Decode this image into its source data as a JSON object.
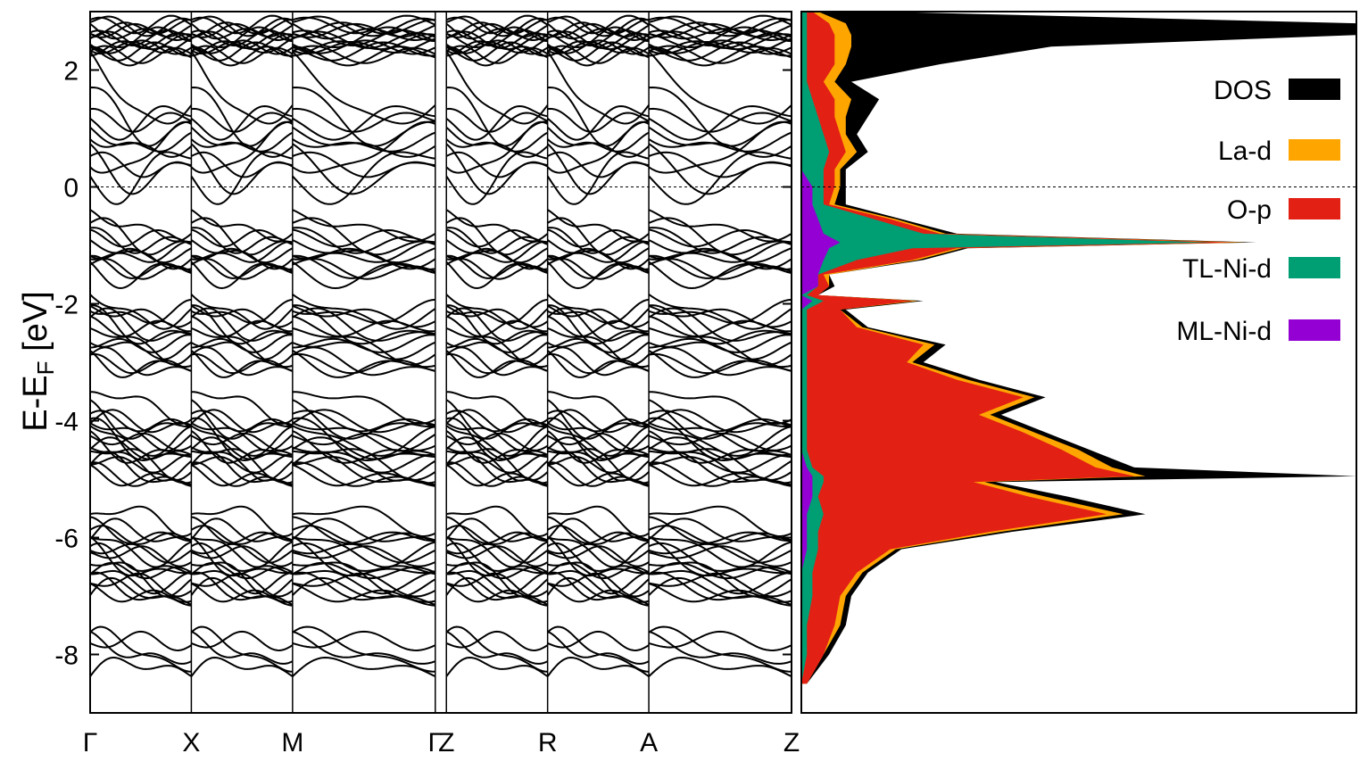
{
  "chart_data": [
    {
      "type": "line",
      "subtype": "band-structure",
      "ylabel": "E-E_F [eV]",
      "ylabel_parts": {
        "main": "E-E",
        "subscript": "F",
        "unit": " [eV]"
      },
      "ylim": [
        -9,
        3
      ],
      "yticks": [
        2,
        0,
        -2,
        -4,
        -6,
        -8
      ],
      "ytick_labels": [
        "2",
        "0",
        "-2",
        "-4",
        "-6",
        "-8"
      ],
      "kpath": [
        {
          "label": "Γ",
          "position": 0.0
        },
        {
          "label": "X",
          "position": 1.0
        },
        {
          "label": "M",
          "position": 2.0
        },
        {
          "label": "Γ",
          "position": 3.41
        },
        {
          "label": "Z",
          "position": 3.52
        },
        {
          "label": "R",
          "position": 4.52
        },
        {
          "label": "A",
          "position": 5.52
        },
        {
          "label": "Z",
          "position": 6.93
        }
      ],
      "xlim": [
        0,
        6.93
      ],
      "fermi_level": 0,
      "band_color": "#000000",
      "band_groups": [
        {
          "center": -8.1,
          "width": 0.55,
          "amplitude": 0.6,
          "count": 4
        },
        {
          "center": -6.5,
          "width": 1.3,
          "amplitude": 0.45,
          "count": 16
        },
        {
          "center": -4.5,
          "width": 1.2,
          "amplitude": 0.5,
          "count": 16
        },
        {
          "center": -2.6,
          "width": 1.1,
          "amplitude": 0.45,
          "count": 12
        },
        {
          "center": -1.1,
          "width": 0.7,
          "amplitude": 0.4,
          "count": 10
        },
        {
          "center": 0.9,
          "width": 1.1,
          "amplitude": 0.9,
          "count": 10
        },
        {
          "center": 2.55,
          "width": 0.55,
          "amplitude": 0.15,
          "count": 14
        }
      ]
    },
    {
      "type": "area",
      "subtype": "projected-density-of-states",
      "ylim": [
        -9,
        3
      ],
      "orientation": "horizontal",
      "legend_position": "right",
      "series": [
        {
          "name": "DOS",
          "color": "#000000",
          "energy": [
            -8.5,
            -8.0,
            -7.5,
            -7.0,
            -6.6,
            -6.2,
            -5.9,
            -5.6,
            -5.3,
            -5.05,
            -4.95,
            -4.8,
            -4.5,
            -4.2,
            -3.9,
            -3.6,
            -3.3,
            -3.0,
            -2.7,
            -2.4,
            -2.1,
            -1.95,
            -1.85,
            -1.7,
            -1.5,
            -1.25,
            -1.05,
            -0.95,
            -0.8,
            -0.55,
            -0.3,
            0.0,
            0.3,
            0.6,
            0.9,
            1.2,
            1.5,
            1.8,
            2.1,
            2.4,
            2.6,
            2.8,
            3.0
          ],
          "value": [
            0.01,
            0.05,
            0.08,
            0.09,
            0.12,
            0.18,
            0.38,
            0.62,
            0.48,
            0.35,
            1.0,
            0.6,
            0.52,
            0.44,
            0.36,
            0.44,
            0.32,
            0.22,
            0.26,
            0.12,
            0.08,
            0.22,
            0.03,
            0.06,
            0.05,
            0.22,
            0.3,
            0.82,
            0.28,
            0.18,
            0.08,
            0.08,
            0.08,
            0.12,
            0.1,
            0.12,
            0.14,
            0.09,
            0.25,
            0.45,
            1.0,
            1.0,
            0.14
          ]
        },
        {
          "name": "La-d",
          "color": "#FFA500",
          "energy": [
            -8.5,
            -8.0,
            -7.5,
            -7.0,
            -6.6,
            -6.2,
            -5.9,
            -5.6,
            -5.3,
            -5.05,
            -4.95,
            -4.8,
            -4.5,
            -4.2,
            -3.9,
            -3.6,
            -3.3,
            -3.0,
            -2.7,
            -2.4,
            -2.1,
            -1.95,
            -1.85,
            -1.7,
            -1.5,
            -1.25,
            -1.05,
            -0.95,
            -0.8,
            -0.55,
            -0.3,
            0.0,
            0.3,
            0.6,
            0.9,
            1.2,
            1.5,
            1.8,
            2.1,
            2.4,
            2.6,
            2.8,
            3.0
          ],
          "value": [
            0.01,
            0.04,
            0.07,
            0.08,
            0.11,
            0.17,
            0.36,
            0.58,
            0.44,
            0.33,
            0.62,
            0.56,
            0.5,
            0.42,
            0.34,
            0.42,
            0.3,
            0.2,
            0.24,
            0.11,
            0.07,
            0.21,
            0.03,
            0.05,
            0.05,
            0.21,
            0.29,
            0.8,
            0.26,
            0.17,
            0.06,
            0.07,
            0.07,
            0.1,
            0.08,
            0.08,
            0.09,
            0.06,
            0.08,
            0.09,
            0.09,
            0.08,
            0.03
          ]
        },
        {
          "name": "O-p",
          "color": "#E32014",
          "energy": [
            -8.5,
            -8.0,
            -7.5,
            -7.0,
            -6.6,
            -6.2,
            -5.9,
            -5.6,
            -5.3,
            -5.05,
            -4.95,
            -4.8,
            -4.5,
            -4.2,
            -3.9,
            -3.6,
            -3.3,
            -3.0,
            -2.7,
            -2.4,
            -2.1,
            -1.95,
            -1.85,
            -1.7,
            -1.5,
            -1.25,
            -1.05,
            -0.95,
            -0.8,
            -0.55,
            -0.3,
            0.0,
            0.3,
            0.6,
            0.9,
            1.2,
            1.5,
            1.8,
            2.1,
            2.4,
            2.6,
            2.8,
            3.0
          ],
          "value": [
            0.01,
            0.04,
            0.06,
            0.07,
            0.1,
            0.16,
            0.34,
            0.55,
            0.41,
            0.31,
            0.6,
            0.53,
            0.47,
            0.4,
            0.32,
            0.4,
            0.28,
            0.19,
            0.22,
            0.1,
            0.07,
            0.2,
            0.03,
            0.05,
            0.04,
            0.2,
            0.28,
            0.78,
            0.25,
            0.16,
            0.05,
            0.06,
            0.06,
            0.08,
            0.07,
            0.06,
            0.06,
            0.04,
            0.06,
            0.06,
            0.06,
            0.05,
            0.02
          ]
        },
        {
          "name": "TL-Ni-d",
          "color": "#009E73",
          "energy": [
            -8.5,
            -8.0,
            -7.5,
            -7.0,
            -6.6,
            -6.2,
            -5.9,
            -5.6,
            -5.3,
            -5.05,
            -4.95,
            -4.8,
            -4.5,
            -4.2,
            -3.9,
            -3.6,
            -3.3,
            -3.0,
            -2.7,
            -2.4,
            -2.1,
            -1.95,
            -1.85,
            -1.7,
            -1.5,
            -1.25,
            -1.05,
            -0.95,
            -0.8,
            -0.55,
            -0.3,
            0.0,
            0.3,
            0.6,
            0.9,
            1.2,
            1.5,
            1.8,
            2.1,
            2.4,
            2.6,
            2.8,
            3.0
          ],
          "value": [
            0.0,
            0.01,
            0.01,
            0.02,
            0.02,
            0.03,
            0.03,
            0.04,
            0.03,
            0.04,
            0.04,
            0.02,
            0.01,
            0.01,
            0.01,
            0.01,
            0.01,
            0.01,
            0.01,
            0.01,
            0.01,
            0.04,
            0.01,
            0.03,
            0.03,
            0.1,
            0.2,
            0.74,
            0.22,
            0.13,
            0.04,
            0.04,
            0.04,
            0.05,
            0.04,
            0.03,
            0.02,
            0.01,
            0.01,
            0.01,
            0.01,
            0.01,
            0.01
          ]
        },
        {
          "name": "ML-Ni-d",
          "color": "#9400D3",
          "energy": [
            -8.5,
            -8.0,
            -7.5,
            -7.0,
            -6.6,
            -6.2,
            -5.9,
            -5.6,
            -5.3,
            -5.05,
            -4.95,
            -4.8,
            -4.5,
            -4.2,
            -3.9,
            -3.6,
            -3.3,
            -3.0,
            -2.7,
            -2.4,
            -2.1,
            -1.95,
            -1.85,
            -1.7,
            -1.5,
            -1.25,
            -1.05,
            -0.95,
            -0.8,
            -0.55,
            -0.3,
            0.0,
            0.3,
            0.6,
            0.9,
            1.2,
            1.5,
            1.8,
            2.1,
            2.4,
            2.6,
            2.8,
            3.0
          ],
          "value": [
            0.0,
            0.0,
            0.0,
            0.0,
            0.0,
            0.01,
            0.01,
            0.01,
            0.02,
            0.02,
            0.02,
            0.01,
            0.0,
            0.0,
            0.0,
            0.0,
            0.0,
            0.0,
            0.0,
            0.0,
            0.0,
            0.02,
            0.0,
            0.03,
            0.03,
            0.04,
            0.05,
            0.07,
            0.04,
            0.03,
            0.02,
            0.02,
            0.0,
            0.0,
            0.0,
            0.0,
            0.0,
            0.0,
            0.0,
            0.0,
            0.0,
            0.0,
            0.0
          ]
        }
      ]
    }
  ]
}
